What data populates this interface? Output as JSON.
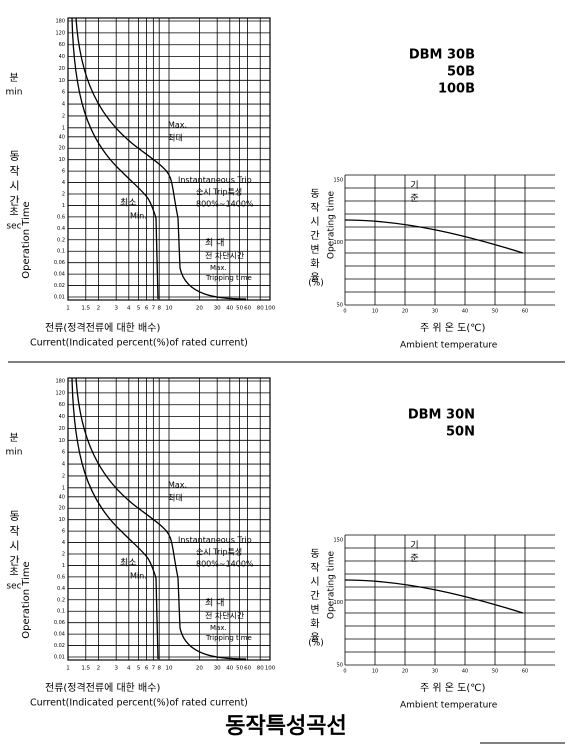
{
  "top": {
    "model": [
      "DBM 30B",
      "50B",
      "100B"
    ],
    "trip_chart": {
      "y_axis_korean": "동작시간",
      "y_axis_english": "Operation Time",
      "minutes_label": [
        "분",
        "min"
      ],
      "seconds_label": [
        "초",
        "sec"
      ],
      "min_ticks": [
        "180",
        "120",
        "60",
        "40",
        "20",
        "10",
        "6",
        "4",
        "2",
        "1"
      ],
      "sec_ticks": [
        "40",
        "20",
        "10",
        "6",
        "4",
        "2",
        "1",
        "0.6",
        "0.4",
        "0.2",
        "0.1",
        "0.06",
        "0.04",
        "0.02",
        "0.01"
      ],
      "x_ticks": [
        "1",
        "1.5",
        "2",
        "3",
        "4",
        "5",
        "6",
        "7",
        "8",
        "10",
        "20",
        "30",
        "40",
        "50",
        "60",
        "80",
        "100"
      ],
      "x_label_korean": "전류(정격전류에 대한 배수)",
      "x_label_english": "Current(Indicated percent(%)of rated current)",
      "max_label": [
        "Max.",
        "최대"
      ],
      "min_label": [
        "최소",
        "Min."
      ],
      "instant_label": [
        "Instantaneous Trip",
        "순시 Trip특성",
        "800%~1400%"
      ],
      "tripping_label": [
        "최 대",
        "전 차단시간",
        "Max.",
        "Tripping time"
      ]
    },
    "temp_chart": {
      "y_label_korean": "동작시간변화율",
      "y_label_unit": "(%)",
      "y_label_english": "Operating time",
      "reference_label": "기준",
      "x_label_korean": "주 위 온 도(℃)",
      "x_label_english": "Ambient temperature",
      "x_ticks": [
        "0",
        "10",
        "20",
        "30",
        "40",
        "50",
        "60"
      ],
      "y_ticks": [
        "150",
        "100",
        "50"
      ]
    }
  },
  "bottom": {
    "model": [
      "DBM 30N",
      "50N"
    ],
    "trip_chart": {
      "y_axis_korean": "동작시간",
      "y_axis_english": "Operation Time",
      "minutes_label": [
        "분",
        "min"
      ],
      "seconds_label": [
        "초",
        "sec"
      ],
      "min_ticks": [
        "180",
        "120",
        "60",
        "40",
        "20",
        "10",
        "6",
        "4",
        "2",
        "1"
      ],
      "sec_ticks": [
        "40",
        "20",
        "10",
        "6",
        "4",
        "2",
        "1",
        "0.6",
        "0.4",
        "0.2",
        "0.1",
        "0.06",
        "0.04",
        "0.02",
        "0.01"
      ],
      "x_ticks": [
        "1",
        "1.5",
        "2",
        "3",
        "4",
        "5",
        "6",
        "7",
        "8",
        "10",
        "20",
        "30",
        "40",
        "50",
        "60",
        "80",
        "100"
      ],
      "x_label_korean": "전류(정격전류에 대한 배수)",
      "x_label_english": "Current(Indicated percent(%)of rated current)",
      "max_label": [
        "Max.",
        "최대"
      ],
      "min_label": [
        "최소",
        "Min."
      ],
      "instant_label": [
        "Instantaneous Trip",
        "순시 Trip특성",
        "800%~1400%"
      ],
      "tripping_label": [
        "최 대",
        "전 차단시간",
        "Max.",
        "Tripping time"
      ]
    },
    "temp_chart": {
      "y_label_korean": "동작시간변화율",
      "y_label_unit": "(%)",
      "y_label_english": "Operating time",
      "reference_label": "기준",
      "x_label_korean": "주 위 온 도(℃)",
      "x_label_english": "Ambient temperature",
      "x_ticks": [
        "0",
        "10",
        "20",
        "30",
        "40",
        "50",
        "60"
      ],
      "y_ticks": [
        "150",
        "100",
        "50"
      ]
    }
  },
  "title": "동작특성곡선"
}
